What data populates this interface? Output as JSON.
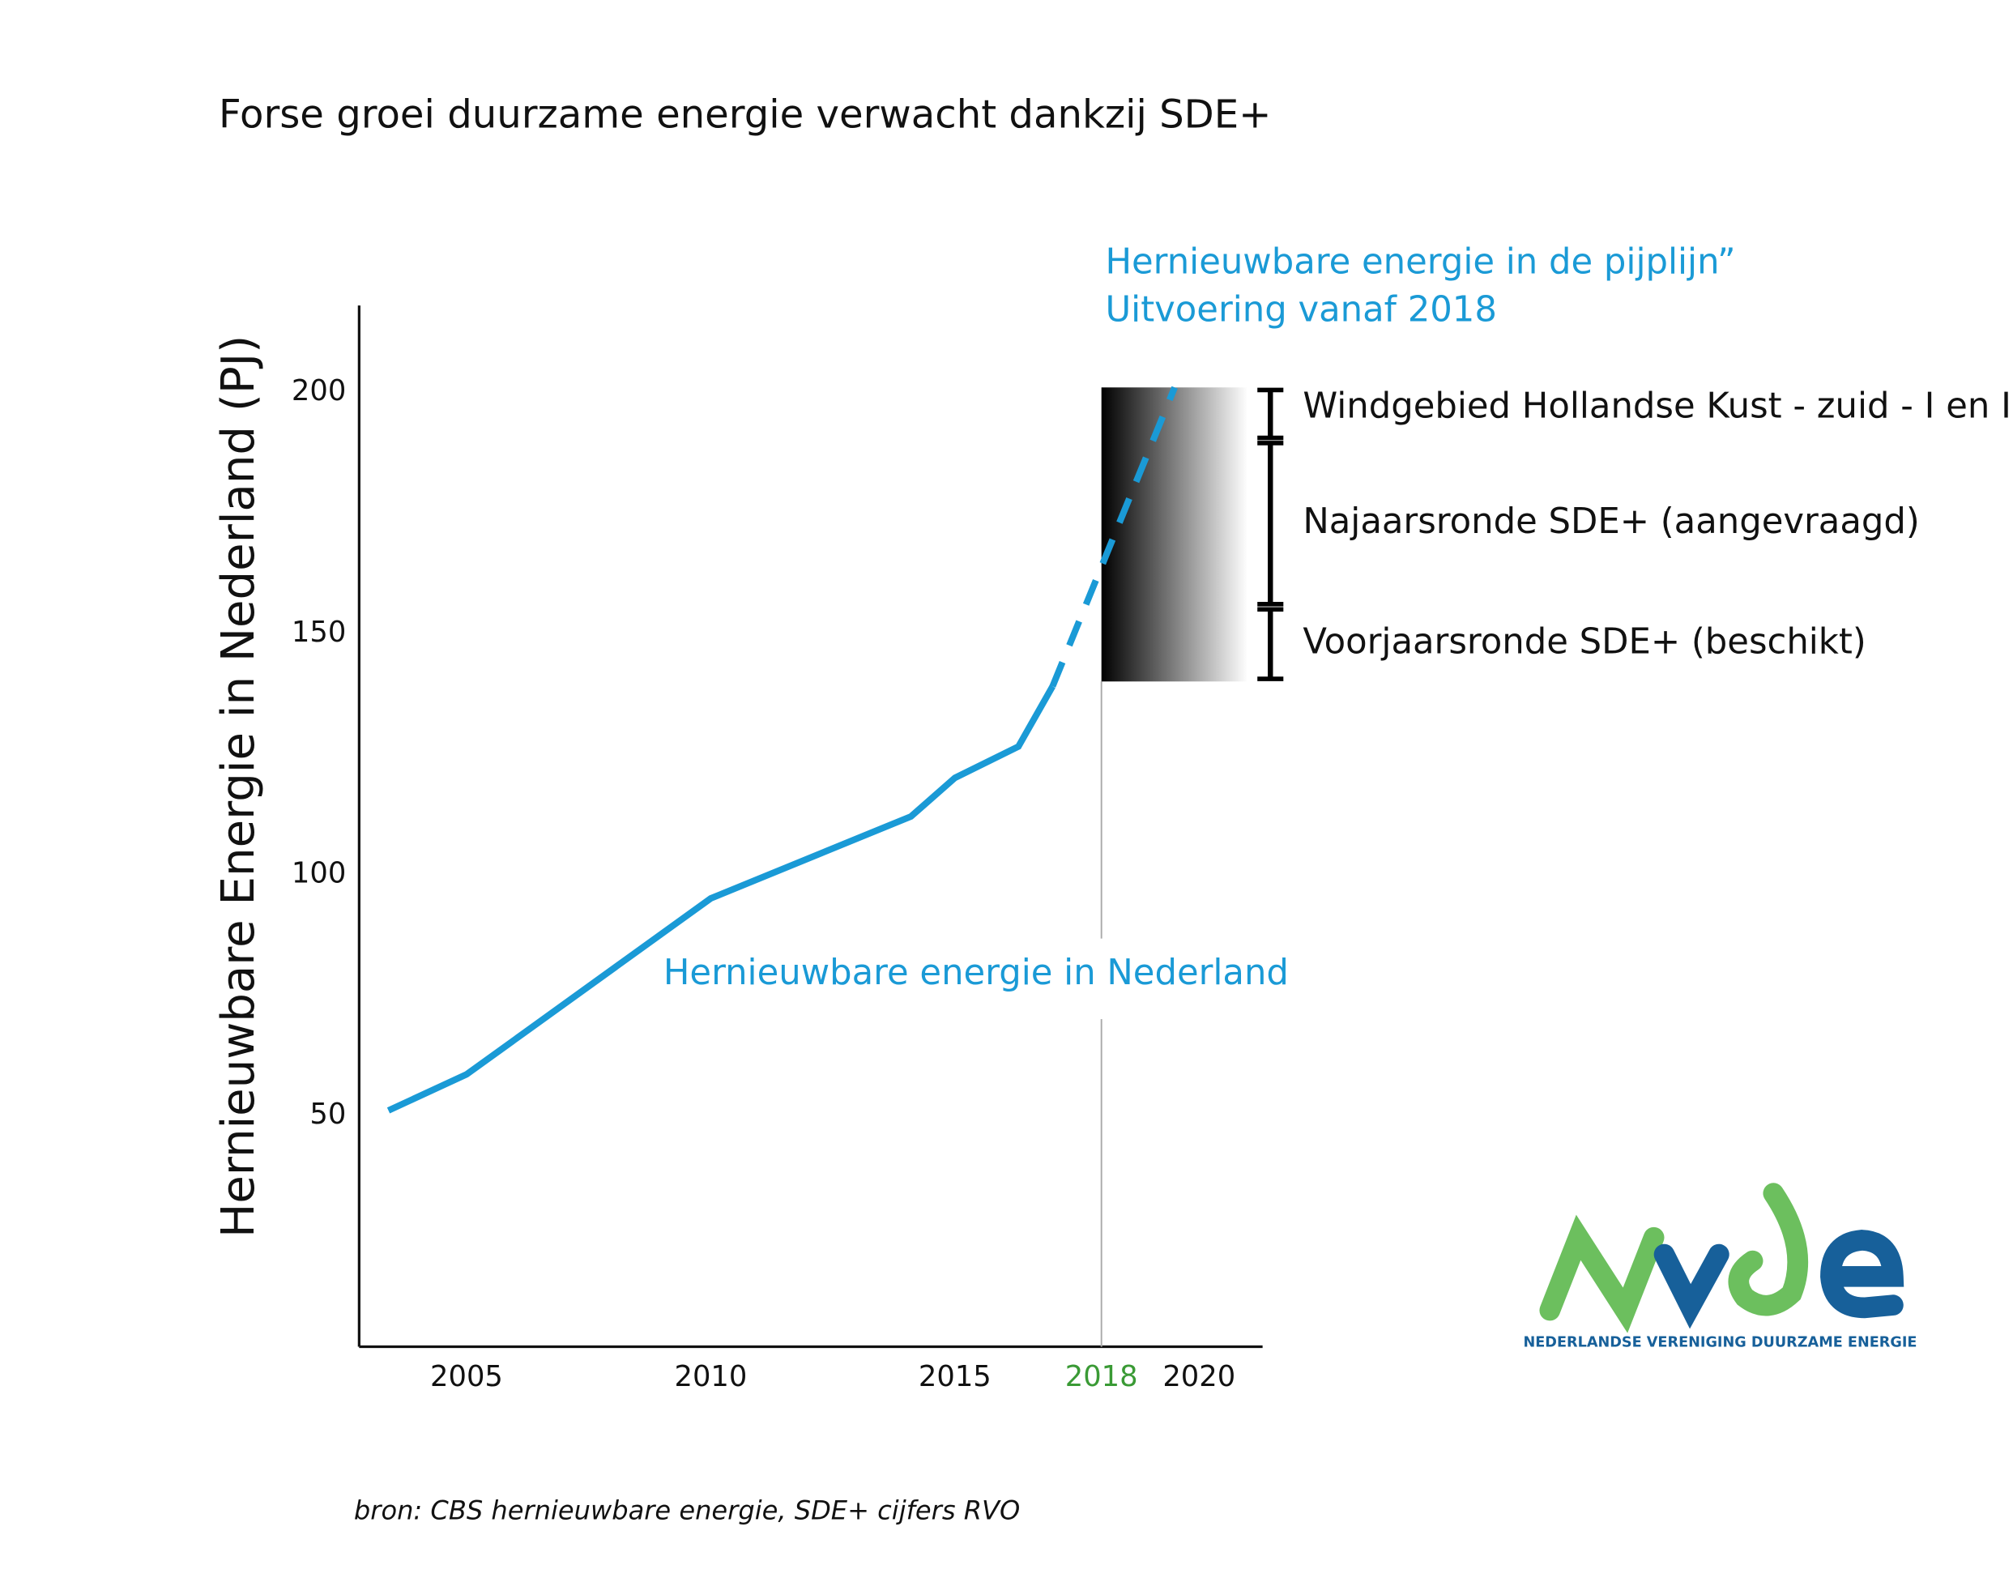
{
  "chart_data": {
    "type": "line",
    "title": "Forse groei duurzame energie verwacht dankzij SDE+",
    "ylabel": "Hernieuwbare Energie in Nederland (PJ)",
    "xlim": [
      2002.8,
      2021.3
    ],
    "ylim": [
      2,
      218
    ],
    "xticks": [
      2005,
      2010,
      2015,
      2018,
      2020
    ],
    "xtick_colors": [
      "#111111",
      "#111111",
      "#111111",
      "#3a9a35",
      "#111111"
    ],
    "yticks": [
      50,
      100,
      150,
      200
    ],
    "series": [
      {
        "name": "Hernieuwbare energie in Nederland",
        "color": "#1a9ad6",
        "dashed": false,
        "x": [
          2003.4,
          2005,
          2010,
          2014.1,
          2015,
          2016.3,
          2017
        ],
        "values": [
          51,
          58.5,
          95,
          112,
          120,
          126.5,
          139
        ]
      },
      {
        "name": "Hernieuwbare energie in de pijplijn”",
        "color": "#1a9ad6",
        "dashed": true,
        "x": [
          2017,
          2019.5
        ],
        "values": [
          139,
          201
        ]
      }
    ],
    "annotations": [
      "Uitvoering vanaf 2018"
    ],
    "pipeline": {
      "x": [
        2018,
        2021
      ],
      "base": 140,
      "segments": [
        {
          "label": "Voorjaarsronde SDE+ (beschikt)",
          "value": 15.5
        },
        {
          "label": "Najaarsronde SDE+ (aangevraagd)",
          "value": 34.5
        },
        {
          "label": "Windgebied Hollandse Kust - zuid - I en II",
          "value": 11
        }
      ]
    },
    "source": "bron: CBS hernieuwbare energie, SDE+ cijfers RVO",
    "logo_tagline": "NEDERLANDSE VERENIGING DUURZAME ENERGIE"
  }
}
